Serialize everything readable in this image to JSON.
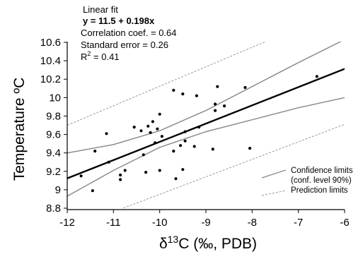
{
  "chart_data": {
    "type": "scatter",
    "title": "",
    "xlabel": "δ13C (‰, PDB)",
    "ylabel": "Temperature ºC",
    "xlim": [
      -12,
      -6
    ],
    "ylim": [
      8.8,
      10.65
    ],
    "xticks": [
      -12,
      -11,
      -10,
      -9,
      -8,
      -7,
      -6
    ],
    "xtick_labels": [
      "-12",
      "-11",
      "-10",
      "-9",
      "-8",
      "-7",
      "-6"
    ],
    "yticks": [
      8.8,
      9,
      9.2,
      9.4,
      9.6,
      9.8,
      10,
      10.2,
      10.4,
      10.6
    ],
    "ytick_labels": [
      "8.8",
      "9",
      "9.2",
      "9.4",
      "9.6",
      "9.8",
      "10",
      "10.2",
      "10.4",
      "10.6"
    ],
    "grid": false,
    "legend_position": "bottom-right",
    "stats": {
      "heading": "Linear fit",
      "equation": "y = 11.5 + 0.198x",
      "correlation": "Correlation coef. = 0.64",
      "std_error": "Standard error = 0.26",
      "r2_label": "R",
      "r2_value": " = 0.41"
    },
    "legend": {
      "confidence_line1": "Confidence limits",
      "confidence_line2": "(conf. level 90%)",
      "prediction": "Prediction limits"
    },
    "colors": {
      "points": "#000000",
      "fit_line": "#000000",
      "confidence": "#8c8c8c",
      "prediction": "#9a9a9a"
    },
    "series": [
      {
        "values": [
          {
            "x": -11.7,
            "y": 9.15
          },
          {
            "x": -11.45,
            "y": 8.99
          },
          {
            "x": -11.4,
            "y": 9.42
          },
          {
            "x": -11.15,
            "y": 9.61
          },
          {
            "x": -11.1,
            "y": 9.3
          },
          {
            "x": -10.85,
            "y": 9.11
          },
          {
            "x": -10.85,
            "y": 9.16
          },
          {
            "x": -10.75,
            "y": 9.21
          },
          {
            "x": -10.55,
            "y": 9.68
          },
          {
            "x": -10.4,
            "y": 9.64
          },
          {
            "x": -10.35,
            "y": 9.38
          },
          {
            "x": -10.3,
            "y": 9.19
          },
          {
            "x": -10.25,
            "y": 9.69
          },
          {
            "x": -10.2,
            "y": 9.62
          },
          {
            "x": -10.15,
            "y": 9.74
          },
          {
            "x": -10.1,
            "y": 9.51
          },
          {
            "x": -10.05,
            "y": 9.66
          },
          {
            "x": -10.0,
            "y": 9.82
          },
          {
            "x": -10.0,
            "y": 9.21
          },
          {
            "x": -9.95,
            "y": 9.58
          },
          {
            "x": -9.7,
            "y": 9.42
          },
          {
            "x": -9.7,
            "y": 10.08
          },
          {
            "x": -9.65,
            "y": 9.12
          },
          {
            "x": -9.55,
            "y": 9.48
          },
          {
            "x": -9.5,
            "y": 9.22
          },
          {
            "x": -9.5,
            "y": 10.04
          },
          {
            "x": -9.45,
            "y": 9.53
          },
          {
            "x": -9.45,
            "y": 9.63
          },
          {
            "x": -9.25,
            "y": 9.47
          },
          {
            "x": -9.2,
            "y": 10.02
          },
          {
            "x": -9.15,
            "y": 9.68
          },
          {
            "x": -8.85,
            "y": 9.44
          },
          {
            "x": -8.8,
            "y": 9.86
          },
          {
            "x": -8.8,
            "y": 9.93
          },
          {
            "x": -8.75,
            "y": 10.12
          },
          {
            "x": -8.6,
            "y": 9.91
          },
          {
            "x": -8.15,
            "y": 10.11
          },
          {
            "x": -8.05,
            "y": 9.45
          },
          {
            "x": -6.6,
            "y": 10.23
          }
        ]
      }
    ],
    "fit_line": [
      {
        "x": -12,
        "y": 9.124
      },
      {
        "x": -6,
        "y": 10.312
      }
    ],
    "confidence_upper": [
      {
        "x": -12,
        "y": 9.4
      },
      {
        "x": -11,
        "y": 9.49
      },
      {
        "x": -10,
        "y": 9.64
      },
      {
        "x": -9,
        "y": 9.86
      },
      {
        "x": -8,
        "y": 10.12
      },
      {
        "x": -7,
        "y": 10.38
      },
      {
        "x": -6,
        "y": 10.63
      }
    ],
    "confidence_lower": [
      {
        "x": -12,
        "y": 8.93
      },
      {
        "x": -11,
        "y": 9.21
      },
      {
        "x": -10,
        "y": 9.46
      },
      {
        "x": -9,
        "y": 9.63
      },
      {
        "x": -8,
        "y": 9.76
      },
      {
        "x": -7,
        "y": 9.89
      },
      {
        "x": -6,
        "y": 10.0
      }
    ],
    "prediction_upper": [
      {
        "x": -12,
        "y": 9.7
      },
      {
        "x": -6,
        "y": 10.97
      }
    ],
    "prediction_lower": [
      {
        "x": -12,
        "y": 8.57
      },
      {
        "x": -6,
        "y": 9.71
      }
    ]
  }
}
